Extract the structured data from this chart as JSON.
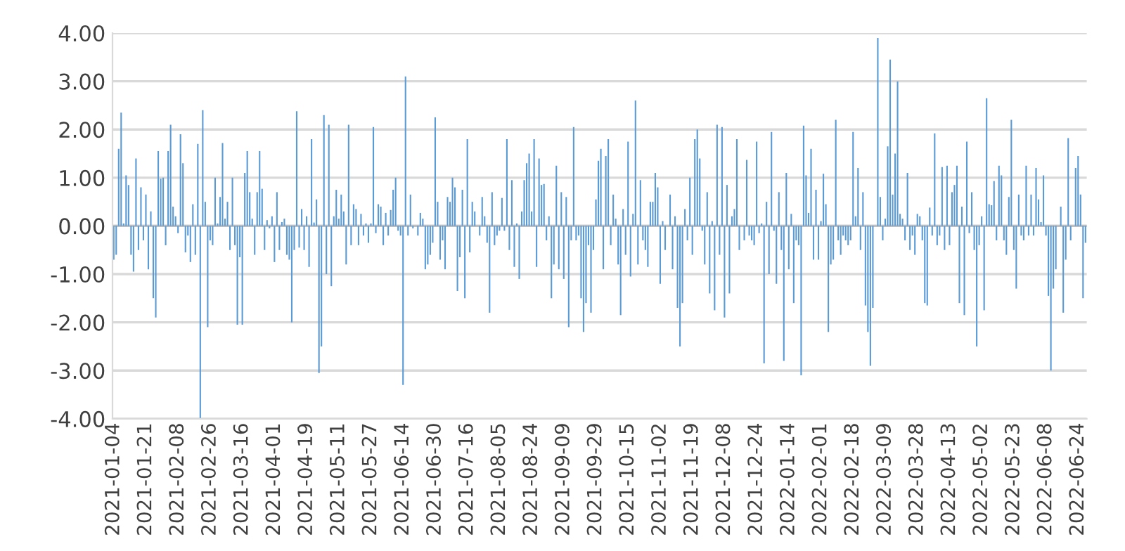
{
  "chart_data": {
    "type": "bar",
    "color": "#5b9bd5",
    "grid": "y",
    "ylim": [
      -4,
      4
    ],
    "yticks": [
      {
        "value": -4,
        "label": "-4.00"
      },
      {
        "value": -3,
        "label": "-3.00"
      },
      {
        "value": -2,
        "label": "-2.00"
      },
      {
        "value": -1,
        "label": "-1.00"
      },
      {
        "value": 0,
        "label": "0.00"
      },
      {
        "value": 1,
        "label": "1.00"
      },
      {
        "value": 2,
        "label": "2.00"
      },
      {
        "value": 3,
        "label": "3.00"
      },
      {
        "value": 4,
        "label": "4.00"
      }
    ],
    "categories": [
      "2021-01-04",
      null,
      null,
      null,
      null,
      null,
      null,
      null,
      null,
      null,
      null,
      null,
      null,
      "2021-01-21",
      null,
      null,
      null,
      null,
      null,
      null,
      null,
      null,
      null,
      null,
      null,
      null,
      "2021-02-08",
      null,
      null,
      null,
      null,
      null,
      null,
      null,
      null,
      null,
      null,
      null,
      null,
      "2021-02-26",
      null,
      null,
      null,
      null,
      null,
      null,
      null,
      null,
      null,
      null,
      null,
      null,
      "2021-03-16",
      null,
      null,
      null,
      null,
      null,
      null,
      null,
      null,
      null,
      null,
      null,
      null,
      "2021-04-01",
      null,
      null,
      null,
      null,
      null,
      null,
      null,
      null,
      null,
      null,
      null,
      null,
      "2021-04-19",
      null,
      null,
      null,
      null,
      null,
      null,
      null,
      null,
      null,
      null,
      null,
      null,
      "2021-05-11",
      null,
      null,
      null,
      null,
      null,
      null,
      null,
      null,
      null,
      null,
      null,
      null,
      "2021-05-27",
      null,
      null,
      null,
      null,
      null,
      null,
      null,
      null,
      null,
      null,
      null,
      null,
      "2021-06-14",
      null,
      null,
      null,
      null,
      null,
      null,
      null,
      null,
      null,
      null,
      null,
      null,
      "2021-06-30",
      null,
      null,
      null,
      null,
      null,
      null,
      null,
      null,
      null,
      null,
      null,
      null,
      "2021-07-16",
      null,
      null,
      null,
      null,
      null,
      null,
      null,
      null,
      null,
      null,
      null,
      null,
      "2021-08-05",
      null,
      null,
      null,
      null,
      null,
      null,
      null,
      null,
      null,
      null,
      null,
      null,
      "2021-08-24",
      null,
      null,
      null,
      null,
      null,
      null,
      null,
      null,
      null,
      null,
      null,
      null,
      "2021-09-09",
      null,
      null,
      null,
      null,
      null,
      null,
      null,
      null,
      null,
      null,
      null,
      null,
      "2021-09-29",
      null,
      null,
      null,
      null,
      null,
      null,
      null,
      null,
      null,
      null,
      null,
      null,
      "2021-10-15",
      null,
      null,
      null,
      null,
      null,
      null,
      null,
      null,
      null,
      null,
      null,
      null,
      "2021-11-02",
      null,
      null,
      null,
      null,
      null,
      null,
      null,
      null,
      null,
      null,
      null,
      null,
      "2021-11-19",
      null,
      null,
      null,
      null,
      null,
      null,
      null,
      null,
      null,
      null,
      null,
      null,
      "2021-12-08",
      null,
      null,
      null,
      null,
      null,
      null,
      null,
      null,
      null,
      null,
      null,
      null,
      "2021-12-24",
      null,
      null,
      null,
      null,
      null,
      null,
      null,
      null,
      null,
      null,
      null,
      null,
      "2022-01-14",
      null,
      null,
      null,
      null,
      null,
      null,
      null,
      null,
      null,
      null,
      null,
      null,
      "2022-02-01",
      null,
      null,
      null,
      null,
      null,
      null,
      null,
      null,
      null,
      null,
      null,
      null,
      "2022-02-18",
      null,
      null,
      null,
      null,
      null,
      null,
      null,
      null,
      null,
      null,
      null,
      null,
      "2022-03-09",
      null,
      null,
      null,
      null,
      null,
      null,
      null,
      null,
      null,
      null,
      null,
      null,
      "2022-03-28",
      null,
      null,
      null,
      null,
      null,
      null,
      null,
      null,
      null,
      null,
      null,
      null,
      "2022-04-13",
      null,
      null,
      null,
      null,
      null,
      null,
      null,
      null,
      null,
      null,
      null,
      null,
      "2022-05-02",
      null,
      null,
      null,
      null,
      null,
      null,
      null,
      null,
      null,
      null,
      null,
      null,
      "2022-05-23",
      null,
      null,
      null,
      null,
      null,
      null,
      null,
      null,
      null,
      null,
      null,
      null,
      "2022-06-08",
      null,
      null,
      null,
      null,
      null,
      null,
      null,
      null,
      null,
      null,
      null,
      null,
      "2022-06-24",
      null,
      null,
      null
    ],
    "values": [
      -0.7,
      -0.6,
      1.6,
      2.35,
      0.05,
      1.05,
      0.85,
      -0.6,
      -0.95,
      1.4,
      -0.5,
      0.8,
      -0.3,
      0.65,
      -0.9,
      0.3,
      -1.5,
      -1.9,
      1.55,
      0.98,
      1.0,
      -0.4,
      1.55,
      2.1,
      0.4,
      0.2,
      -0.15,
      1.9,
      1.3,
      -0.55,
      -0.2,
      -0.75,
      0.45,
      -0.6,
      1.7,
      -4.0,
      2.4,
      0.5,
      -2.1,
      -0.3,
      -0.4,
      1.0,
      0.05,
      0.6,
      1.72,
      0.15,
      0.5,
      -0.5,
      1.0,
      -0.4,
      -2.05,
      -0.65,
      -2.05,
      1.1,
      1.55,
      0.7,
      0.15,
      -0.6,
      0.7,
      1.55,
      0.77,
      -0.5,
      0.12,
      -0.05,
      0.2,
      -0.75,
      0.7,
      -0.5,
      0.08,
      0.15,
      -0.6,
      -0.7,
      -2.0,
      -0.5,
      2.38,
      -0.45,
      0.35,
      -0.5,
      0.2,
      -0.85,
      1.8,
      0.07,
      0.55,
      -3.05,
      -2.5,
      2.3,
      -1.0,
      2.1,
      -1.25,
      0.2,
      0.75,
      0.15,
      0.65,
      0.3,
      -0.8,
      2.1,
      -0.4,
      0.45,
      0.35,
      -0.4,
      0.25,
      -0.2,
      0.05,
      -0.35,
      0.05,
      2.05,
      -0.15,
      0.45,
      0.4,
      -0.4,
      0.27,
      -0.2,
      0.33,
      0.75,
      1.0,
      -0.1,
      -0.2,
      -3.3,
      3.1,
      -0.2,
      0.65,
      -0.05,
      0.0,
      -0.2,
      0.27,
      0.15,
      -0.9,
      -0.8,
      -0.6,
      -0.35,
      2.25,
      0.5,
      -0.7,
      -0.3,
      -0.9,
      0.6,
      0.5,
      1.0,
      0.8,
      -1.35,
      -0.65,
      0.75,
      -1.5,
      1.8,
      -0.55,
      0.5,
      0.3,
      0.0,
      -0.2,
      0.6,
      0.2,
      -0.35,
      -1.8,
      0.7,
      -0.4,
      -0.2,
      -0.1,
      0.58,
      -0.1,
      1.8,
      -0.5,
      0.95,
      -0.85,
      0.05,
      -1.1,
      0.3,
      0.95,
      1.3,
      1.5,
      0.3,
      1.8,
      -0.85,
      1.4,
      0.85,
      0.87,
      -0.3,
      0.2,
      -1.5,
      -0.8,
      1.25,
      -0.9,
      0.7,
      -1.1,
      0.6,
      -2.1,
      -0.3,
      2.05,
      -0.3,
      -0.2,
      -1.5,
      -2.2,
      -1.6,
      -0.4,
      -1.8,
      -0.5,
      0.55,
      1.35,
      1.6,
      -0.9,
      1.45,
      1.8,
      -0.4,
      0.65,
      0.15,
      -0.8,
      -1.85,
      0.35,
      -0.6,
      1.75,
      -1.05,
      0.25,
      2.6,
      -0.8,
      0.95,
      -0.3,
      -0.5,
      -0.85,
      0.5,
      0.5,
      1.1,
      0.8,
      -1.2,
      0.1,
      -0.5,
      0.0,
      0.65,
      -0.9,
      0.2,
      -1.7,
      -2.5,
      -1.6,
      0.35,
      -0.3,
      1.0,
      -0.6,
      1.8,
      2.0,
      1.4,
      -0.1,
      -0.8,
      0.7,
      -1.4,
      0.1,
      -1.75,
      2.1,
      -0.6,
      2.05,
      -1.9,
      0.85,
      -1.4,
      0.2,
      0.35,
      1.8,
      -0.5,
      0.0,
      -0.3,
      1.37,
      -0.2,
      -0.3,
      -0.4,
      1.75,
      -0.15,
      0.05,
      -2.85,
      0.5,
      -1.0,
      1.95,
      -0.1,
      -1.2,
      0.7,
      -0.5,
      -2.8,
      1.1,
      -0.9,
      0.25,
      -1.6,
      -0.3,
      -0.4,
      -3.1,
      2.08,
      1.05,
      0.27,
      1.6,
      -0.7,
      0.75,
      -0.7,
      0.1,
      1.08,
      0.45,
      -2.2,
      -0.8,
      -0.7,
      2.2,
      -0.3,
      -0.6,
      -0.2,
      -0.3,
      -0.4,
      -0.3,
      1.95,
      0.2,
      1.2,
      -0.5,
      0.7,
      -1.65,
      -2.2,
      -2.9,
      -1.7,
      0.0,
      3.9,
      0.6,
      -0.3,
      0.15,
      1.65,
      3.45,
      0.65,
      1.5,
      3.0,
      0.25,
      0.15,
      -0.3,
      1.1,
      -0.5,
      -0.2,
      -0.6,
      0.25,
      0.2,
      -0.3,
      -1.6,
      -1.65,
      0.38,
      -0.2,
      1.92,
      -0.4,
      -0.2,
      1.22,
      -0.5,
      1.25,
      -0.4,
      0.7,
      0.85,
      1.25,
      -1.6,
      0.4,
      -1.85,
      1.75,
      -0.15,
      0.7,
      -0.5,
      -2.5,
      -0.4,
      0.2,
      -1.75,
      2.65,
      0.45,
      0.43,
      0.93,
      -0.3,
      1.25,
      1.05,
      -0.3,
      -0.6,
      0.6,
      2.2,
      -0.5,
      -1.3,
      0.65,
      -0.2,
      -0.3,
      1.25,
      -0.2,
      0.65,
      -0.2,
      1.2,
      0.55,
      0.08,
      1.05,
      -0.2,
      -1.45,
      -3.0,
      -1.3,
      -0.9,
      0.0,
      0.4,
      -1.8,
      -0.7,
      1.82,
      -0.3,
      null,
      1.2,
      1.45,
      0.65,
      -1.5,
      -0.35
    ]
  }
}
